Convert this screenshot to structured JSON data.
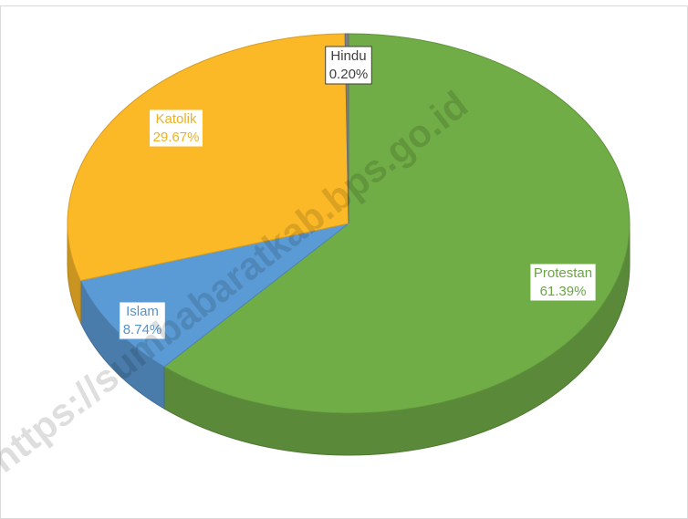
{
  "chart_data": {
    "type": "pie",
    "categories": [
      "Protestan",
      "Islam",
      "Katolik",
      "Hindu"
    ],
    "values": [
      61.39,
      8.74,
      29.67,
      0.2
    ],
    "value_labels": [
      "61.39%",
      "8.74%",
      "29.67%",
      "0.20%"
    ],
    "colors": [
      "#70ad47",
      "#5b9bd5",
      "#fbb928",
      "#7f7f7f"
    ],
    "watermark": "https://sumbabaratkab.bps.go.id"
  }
}
